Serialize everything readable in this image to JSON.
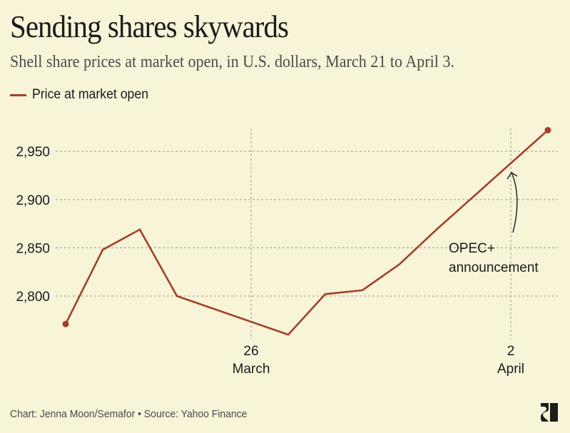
{
  "header": {
    "title": "Sending shares skywards",
    "subtitle": "Shell share prices at market open, in U.S. dollars, March 21 to April 3."
  },
  "legend": {
    "label": "Price at market open",
    "color": "#a3402a"
  },
  "footer": {
    "credit": "Chart: Jenna Moon/Semafor • Source: Yahoo Finance",
    "logo": "semafor-logo-icon"
  },
  "chart_data": {
    "type": "line",
    "title": "Sending shares skywards",
    "subtitle": "Shell share prices at market open, in U.S. dollars, March 21 to April 3.",
    "xlabel": "",
    "ylabel": "",
    "x_unit": "calendar day (0 = March 21)",
    "grid": true,
    "legend_position": "top-left",
    "ylim": [
      2750,
      2985
    ],
    "xlim": [
      0,
      13
    ],
    "y_ticks": [
      {
        "value": 2800,
        "label": "2,800"
      },
      {
        "value": 2850,
        "label": "2,850"
      },
      {
        "value": 2900,
        "label": "2,900"
      },
      {
        "value": 2950,
        "label": "2,950"
      }
    ],
    "x_ticks": [
      {
        "day": 5,
        "line1": "26",
        "line2": "March"
      },
      {
        "day": 12,
        "line1": "2",
        "line2": "April"
      }
    ],
    "series": [
      {
        "name": "Price at market open",
        "color": "#a3402a",
        "points": [
          {
            "date": "March 21",
            "day": 0,
            "value": 2771
          },
          {
            "date": "March 22",
            "day": 1,
            "value": 2848
          },
          {
            "date": "March 23",
            "day": 2,
            "value": 2869
          },
          {
            "date": "March 24",
            "day": 3,
            "value": 2800
          },
          {
            "date": "March 27",
            "day": 6,
            "value": 2760
          },
          {
            "date": "March 28",
            "day": 7,
            "value": 2802
          },
          {
            "date": "March 29",
            "day": 8,
            "value": 2806
          },
          {
            "date": "March 30",
            "day": 9,
            "value": 2833
          },
          {
            "date": "March 31",
            "day": 10,
            "value": 2869
          },
          {
            "date": "April 3",
            "day": 13,
            "value": 2972
          }
        ],
        "endpoint_markers": true
      }
    ],
    "annotations": [
      {
        "text_line1": "OPEC+",
        "text_line2": "announcement",
        "points_to_day": 12,
        "arrow": "curved-up"
      }
    ]
  }
}
